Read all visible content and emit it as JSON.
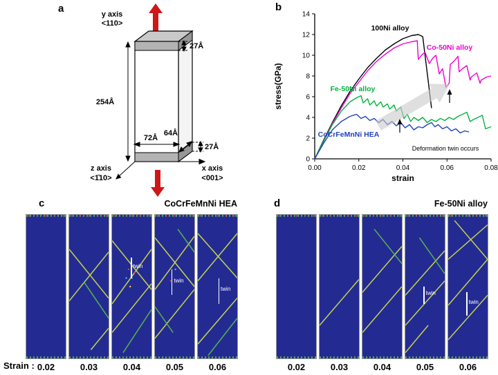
{
  "panels": {
    "strain_prefix": "Strain :",
    "a": {
      "label": "a",
      "y_axis": {
        "line1": "y axis",
        "line2": "<110>"
      },
      "z_axis": {
        "line1": "z axis",
        "line2": "<1̄10>"
      },
      "x_axis": {
        "line1": "x axis",
        "line2": "<001>"
      },
      "dims": {
        "top_thickness": "27Å",
        "height": "254Å",
        "width": "72Å",
        "depth": "64Å",
        "bottom_thickness": "27Å"
      }
    },
    "b": {
      "label": "b"
    },
    "c": {
      "label": "c",
      "title": "CoCrFeMnNi HEA",
      "strains": [
        "0.02",
        "0.03",
        "0.04",
        "0.05",
        "0.06"
      ],
      "twin_label": "twin"
    },
    "d": {
      "label": "d",
      "title": "Fe-50Ni alloy",
      "strains": [
        "0.02",
        "0.03",
        "0.04",
        "0.05",
        "0.06"
      ],
      "twin_label": "twin"
    }
  },
  "chart_data": {
    "type": "line",
    "title": "",
    "xlabel": "strain",
    "ylabel": "stress(GPa)",
    "xlim": [
      0,
      0.08
    ],
    "ylim": [
      0,
      14
    ],
    "xticks": [
      "0.00",
      "0.02",
      "0.04",
      "0.06",
      "0.08"
    ],
    "yticks": [
      0,
      2,
      4,
      6,
      8,
      10,
      12,
      14
    ],
    "annotation": "Deformation twin occurs",
    "legend_position": "inline-labels",
    "grid": false,
    "series": [
      {
        "name": "100Ni alloy",
        "color": "#000000",
        "x": [
          0,
          0.004,
          0.008,
          0.012,
          0.016,
          0.02,
          0.024,
          0.028,
          0.032,
          0.036,
          0.04,
          0.044,
          0.047,
          0.049,
          0.053
        ],
        "y": [
          0,
          1.8,
          3.5,
          5.1,
          6.5,
          7.7,
          8.8,
          9.7,
          10.5,
          11.1,
          11.6,
          11.9,
          12.0,
          11.8,
          4.9
        ]
      },
      {
        "name": "Co-50Ni alloy",
        "color": "#ee00cc",
        "x": [
          0,
          0.004,
          0.008,
          0.012,
          0.016,
          0.02,
          0.024,
          0.028,
          0.032,
          0.036,
          0.04,
          0.044,
          0.0465,
          0.047,
          0.0485,
          0.05,
          0.052,
          0.0535,
          0.055,
          0.0565,
          0.058,
          0.0595,
          0.061,
          0.0615,
          0.0635,
          0.065,
          0.0655,
          0.067,
          0.069,
          0.0705,
          0.071,
          0.0735,
          0.075,
          0.0755,
          0.078,
          0.08
        ],
        "y": [
          0,
          1.7,
          3.4,
          4.9,
          6.3,
          7.4,
          8.5,
          9.4,
          10.1,
          10.7,
          11.1,
          11.3,
          11.4,
          9.6,
          10.0,
          10.3,
          9.2,
          9.7,
          10.0,
          8.2,
          8.7,
          6.9,
          7.3,
          9.1,
          9.5,
          9.9,
          8.4,
          8.7,
          9.0,
          7.6,
          7.9,
          8.3,
          7.3,
          7.6,
          7.9,
          8.0
        ]
      },
      {
        "name": "Fe-50Ni alloy",
        "color": "#00b33c",
        "x": [
          0,
          0.004,
          0.008,
          0.012,
          0.016,
          0.019,
          0.021,
          0.022,
          0.024,
          0.025,
          0.027,
          0.028,
          0.03,
          0.031,
          0.033,
          0.034,
          0.036,
          0.037,
          0.039,
          0.0405,
          0.042,
          0.0435,
          0.045,
          0.047,
          0.049,
          0.051,
          0.053,
          0.055,
          0.057,
          0.059,
          0.061,
          0.063,
          0.065,
          0.067,
          0.069,
          0.0705,
          0.072,
          0.074,
          0.076,
          0.0775,
          0.08
        ],
        "y": [
          0,
          1.7,
          3.3,
          4.6,
          5.5,
          5.9,
          6.1,
          5.4,
          5.8,
          5.2,
          5.6,
          5.1,
          5.5,
          5.0,
          5.3,
          4.8,
          5.2,
          4.6,
          5.0,
          3.9,
          4.3,
          3.6,
          4.0,
          3.7,
          4.0,
          3.5,
          3.8,
          3.6,
          3.9,
          3.7,
          4.0,
          3.8,
          4.1,
          4.3,
          4.5,
          3.6,
          3.8,
          4.0,
          4.2,
          2.9,
          3.1
        ]
      },
      {
        "name": "CoCrFeMnNi HEA",
        "color": "#2040c0",
        "x": [
          0,
          0.004,
          0.008,
          0.012,
          0.016,
          0.019,
          0.021,
          0.023,
          0.025,
          0.027,
          0.029,
          0.031,
          0.033,
          0.035,
          0.037,
          0.039,
          0.041,
          0.043,
          0.045,
          0.047,
          0.049,
          0.051,
          0.053,
          0.0545,
          0.056,
          0.058,
          0.06,
          0.062,
          0.064,
          0.066,
          0.068,
          0.07
        ],
        "y": [
          0,
          1.5,
          2.8,
          3.6,
          4.1,
          4.3,
          3.9,
          4.1,
          3.7,
          3.9,
          3.5,
          3.8,
          3.3,
          3.6,
          3.2,
          3.5,
          3.0,
          3.3,
          2.8,
          3.1,
          3.0,
          3.3,
          3.5,
          3.1,
          3.3,
          2.9,
          3.1,
          2.7,
          2.9,
          2.5,
          2.7,
          2.6
        ]
      }
    ]
  }
}
